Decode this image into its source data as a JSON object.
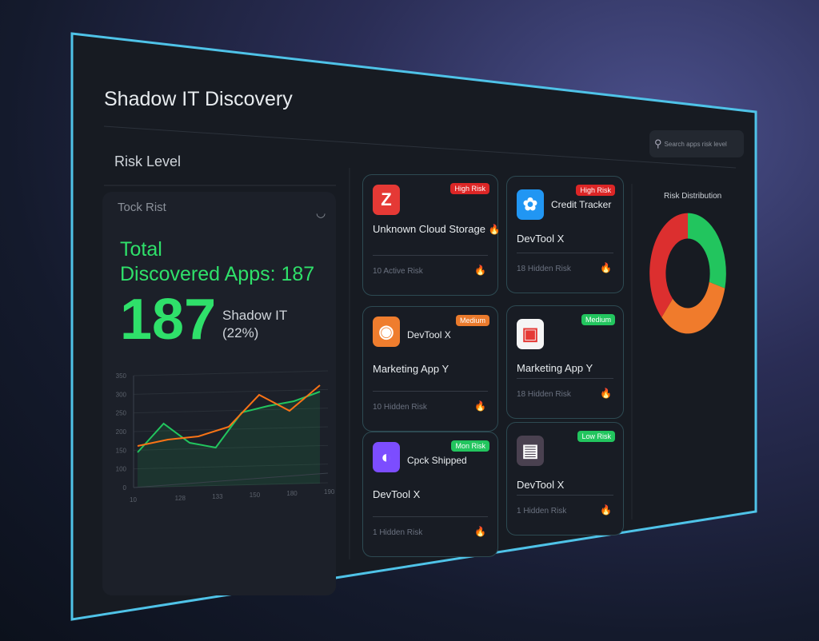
{
  "header": {
    "title": "Shadow IT Discovery",
    "search_placeholder": "Search apps risk level"
  },
  "left": {
    "section_title": "Risk Level",
    "panel_title": "Tock Rist",
    "total_label": "Total\nDiscovered Apps: 187",
    "total_line1": "Total",
    "total_line2": "Discovered Apps: 187",
    "big_number": "187",
    "sub_label1": "Shadow IT",
    "sub_label2": "(22%)"
  },
  "chart_data": {
    "type": "line",
    "y_ticks": [
      "350",
      "300",
      "250",
      "200",
      "150",
      "100",
      "0"
    ],
    "x_ticks": [
      "10",
      "128",
      "133",
      "150",
      "180",
      "190"
    ],
    "ylim": [
      0,
      350
    ],
    "grid": true,
    "series": [
      {
        "color": "#22c55e",
        "values": [
          110,
          200,
          140,
          125,
          235,
          255,
          270,
          300
        ]
      },
      {
        "color": "#f97316",
        "values": [
          130,
          150,
          160,
          190,
          290,
          240,
          320
        ]
      }
    ]
  },
  "cards": [
    {
      "badge": "High Risk",
      "badge_color": "#dc2626",
      "icon": "z-letter-icon",
      "icon_color": "#e53935",
      "icon_glyph": "Z",
      "name": "",
      "title": "Unknown Cloud Storage",
      "footer": "10 Active Risk"
    },
    {
      "badge": "High Risk",
      "badge_color": "#dc2626",
      "icon": "app-blue-icon",
      "icon_color": "#2196f3",
      "icon_glyph": "✿",
      "name": "Credit Tracker",
      "title": "DevTool X",
      "footer": "18 Hidden Risk"
    },
    {
      "badge": "Medium",
      "badge_color": "#ea7a2c",
      "icon": "orange-ring-icon",
      "icon_color": "#ef7d2e",
      "icon_glyph": "◉",
      "name": "DevTool X",
      "title": "Marketing App Y",
      "footer": "10 Hidden Risk"
    },
    {
      "badge": "Medium",
      "badge_color": "#22c55e",
      "icon": "marketing-app-icon",
      "icon_color": "#f5f5f5",
      "icon_glyph": "▣",
      "name": "",
      "title": "Marketing App Y",
      "footer": "18 Hidden Risk"
    },
    {
      "badge": "Mon Risk",
      "badge_color": "#22c55e",
      "icon": "purple-app-icon",
      "icon_color": "#7c4dff",
      "icon_glyph": "◐",
      "name": "Cpck Shipped",
      "title": "DevTool X",
      "footer": "1 Hidden Risk"
    },
    {
      "badge": "Low Risk",
      "badge_color": "#22c55e",
      "icon": "gray-app-icon",
      "icon_color": "#4a4150",
      "icon_glyph": "▤",
      "name": "",
      "title": "DevTool X",
      "footer": "1 Hidden Risk"
    }
  ],
  "risk_distribution": {
    "title": "Risk Distribution",
    "slices": [
      {
        "color": "#22c55e",
        "percent": 29
      },
      {
        "color": "#f07b2c",
        "percent": 33
      },
      {
        "color": "#dc2f2f",
        "percent": 38
      }
    ]
  }
}
